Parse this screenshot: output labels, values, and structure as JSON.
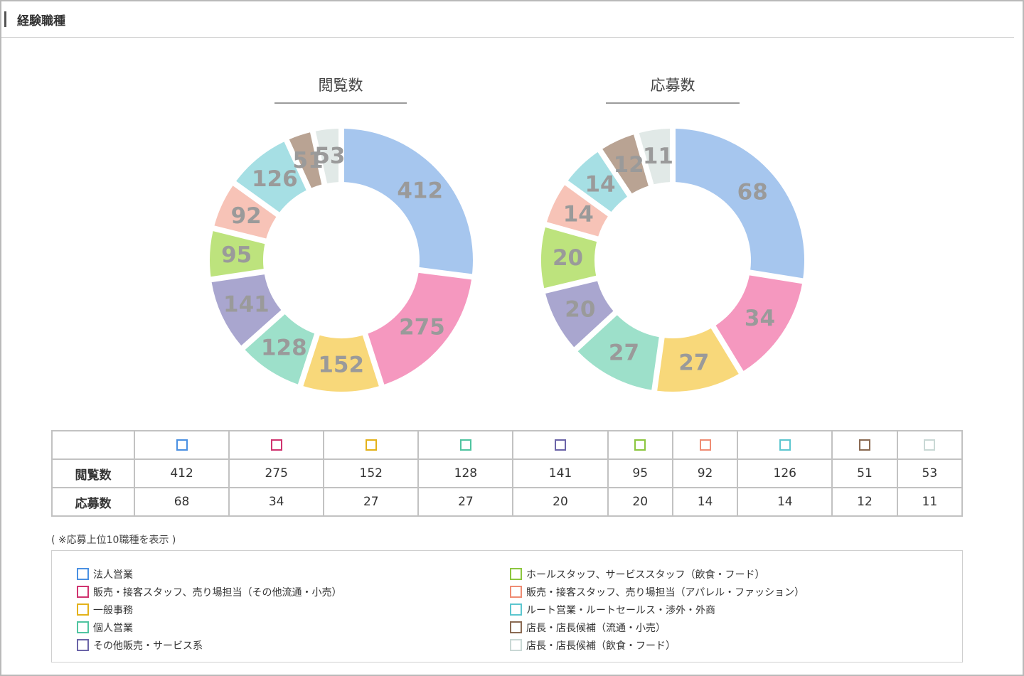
{
  "section_title": "経験職種",
  "colors": [
    "#a6c6ee",
    "#f598bf",
    "#f8d87a",
    "#9de0ca",
    "#a9a6cf",
    "#bde37d",
    "#f7c3b7",
    "#a6dfe4",
    "#b9a393",
    "#e1e9e7"
  ],
  "swatch_borders": [
    "#4a90e2",
    "#d0336f",
    "#e3b21a",
    "#4fc4a0",
    "#6b64a8",
    "#8cc63f",
    "#ef8c73",
    "#5cc6cf",
    "#8a6a52",
    "#c9d8d5"
  ],
  "table": {
    "rows": [
      {
        "label": "閲覧数",
        "values": [
          "412",
          "275",
          "152",
          "128",
          "141",
          "95",
          "92",
          "126",
          "51",
          "53"
        ]
      },
      {
        "label": "応募数",
        "values": [
          "68",
          "34",
          "27",
          "27",
          "20",
          "20",
          "14",
          "14",
          "12",
          "11"
        ]
      }
    ]
  },
  "note": "( ※応募上位10職種を表示 )",
  "legend": {
    "left": [
      "法人営業",
      "販売・接客スタッフ、売り場担当（その他流通・小売）",
      "一般事務",
      "個人営業",
      "その他販売・サービス系"
    ],
    "right": [
      "ホールスタッフ、サービススタッフ（飲食・フード）",
      "販売・接客スタッフ、売り場担当（アパレル・ファッション）",
      "ルート営業・ルートセールス・渉外・外商",
      "店長・店長候補（流通・小売）",
      "店長・店長候補（飲食・フード）"
    ]
  },
  "chart_data": [
    {
      "type": "pie",
      "variant": "donut",
      "title": "閲覧数",
      "categories": [
        "法人営業",
        "販売・接客スタッフ、売り場担当（その他流通・小売）",
        "一般事務",
        "個人営業",
        "その他販売・サービス系",
        "ホールスタッフ、サービススタッフ（飲食・フード）",
        "販売・接客スタッフ、売り場担当（アパレル・ファッション）",
        "ルート営業・ルートセールス・渉外・外商",
        "店長・店長候補（流通・小売）",
        "店長・店長候補（飲食・フード）"
      ],
      "values": [
        412,
        275,
        152,
        128,
        141,
        95,
        92,
        126,
        51,
        53
      ]
    },
    {
      "type": "pie",
      "variant": "donut",
      "title": "応募数",
      "categories": [
        "法人営業",
        "販売・接客スタッフ、売り場担当（その他流通・小売）",
        "一般事務",
        "個人営業",
        "その他販売・サービス系",
        "ホールスタッフ、サービススタッフ（飲食・フード）",
        "販売・接客スタッフ、売り場担当（アパレル・ファッション）",
        "ルート営業・ルートセールス・渉外・外商",
        "店長・店長候補（流通・小売）",
        "店長・店長候補（飲食・フード）"
      ],
      "values": [
        68,
        34,
        27,
        27,
        20,
        20,
        14,
        14,
        12,
        11
      ]
    }
  ]
}
